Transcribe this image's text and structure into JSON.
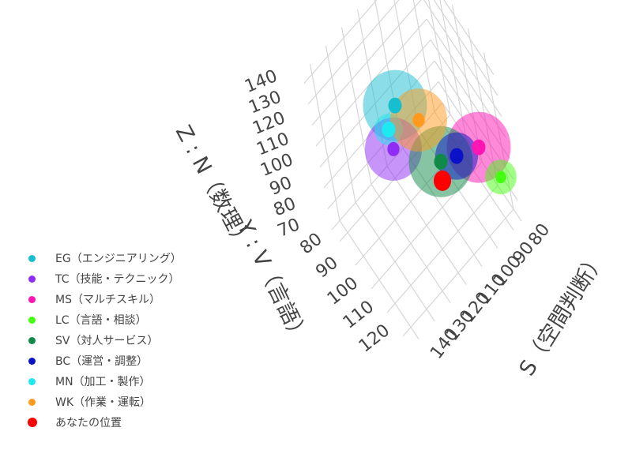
{
  "chart_data": {
    "type": "scatter3d",
    "axes": {
      "x": {
        "title": "S（空間判断）",
        "range": [
          75,
          145
        ],
        "ticks": [
          80,
          90,
          100,
          110,
          120,
          130,
          140
        ]
      },
      "y": {
        "title": "Y : V（言語）",
        "range": [
          75,
          125
        ],
        "ticks": [
          80,
          90,
          100,
          110,
          120
        ]
      },
      "z": {
        "title": "Z : N（数理）",
        "range": [
          70,
          145
        ],
        "ticks": [
          70,
          80,
          90,
          100,
          110,
          120,
          130,
          140
        ]
      }
    },
    "grid": true,
    "legend_position": "left",
    "series": [
      {
        "name": "EG（エンジニアリング）",
        "color": "#17becf",
        "x": 107,
        "y": 87,
        "z": 110,
        "spread_size": 90,
        "size": 20
      },
      {
        "name": "TC（技能・テクニック）",
        "color": "#8f2cf5",
        "x": 118,
        "y": 97,
        "z": 110,
        "spread_size": 80,
        "size": 18
      },
      {
        "name": "MS（マルチスキル）",
        "color": "#ff14b4",
        "x": 87,
        "y": 120,
        "z": 110,
        "spread_size": 90,
        "size": 20
      },
      {
        "name": "LC（言語・相談）",
        "color": "#44ff10",
        "x": 79,
        "y": 121,
        "z": 90,
        "spread_size": 44,
        "size": 16
      },
      {
        "name": "SV（対人サービス）",
        "color": "#0f8a48",
        "x": 104,
        "y": 113,
        "z": 110,
        "spread_size": 90,
        "size": 20
      },
      {
        "name": "BC（運営・調整）",
        "color": "#0a12c8",
        "x": 97,
        "y": 116,
        "z": 110,
        "spread_size": 60,
        "size": 20
      },
      {
        "name": "MN（加工・製作）",
        "color": "#1ee8f0",
        "x": 115,
        "y": 91,
        "z": 110,
        "spread_size": 40,
        "size": 20
      },
      {
        "name": "WK（作業・運転）",
        "color": "#ff9a1e",
        "x": 102,
        "y": 97,
        "z": 110,
        "spread_size": 80,
        "size": 18
      },
      {
        "name": "あなたの位置",
        "color": "#ff0000",
        "x": 108,
        "y": 118,
        "z": 110,
        "size": 26
      }
    ]
  }
}
